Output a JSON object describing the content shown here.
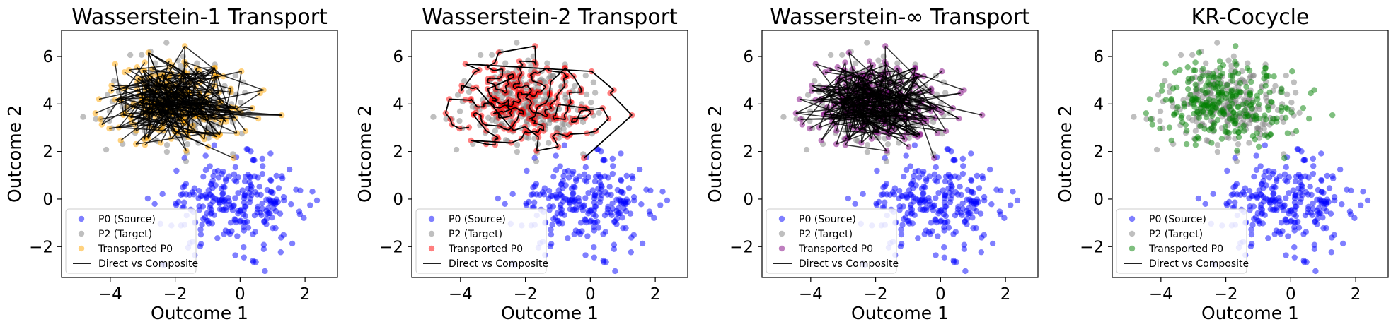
{
  "chart_data": [
    {
      "type": "scatter",
      "title": "Wasserstein-1 Transport",
      "xlabel": "Outcome 1",
      "ylabel": "Outcome 2",
      "transport_style": "random",
      "transport_color": "#ffa500",
      "legend": [
        "P0 (Source)",
        "P2 (Target)",
        "Transported P0",
        "Direct vs Composite"
      ]
    },
    {
      "type": "scatter",
      "title": "Wasserstein-2 Transport",
      "xlabel": "Outcome 1",
      "ylabel": "Outcome 2",
      "transport_style": "path",
      "transport_color": "#ff0000",
      "legend": [
        "P0 (Source)",
        "P2 (Target)",
        "Transported P0",
        "Direct vs Composite"
      ]
    },
    {
      "type": "scatter",
      "title": "Wasserstein-∞ Transport",
      "xlabel": "Outcome 1",
      "ylabel": "Outcome 2",
      "transport_style": "random",
      "transport_color": "#800080",
      "legend": [
        "P0 (Source)",
        "P2 (Target)",
        "Transported P0",
        "Direct vs Composite"
      ]
    },
    {
      "type": "scatter",
      "title": "KR-Cocycle",
      "xlabel": "Outcome 1",
      "ylabel": "Outcome 2",
      "transport_style": "none",
      "transport_color": "#008000",
      "legend": [
        "P0 (Source)",
        "P2 (Target)",
        "Transported P0",
        "Direct vs Composite"
      ]
    }
  ],
  "shared": {
    "xlim": [
      -5.5,
      3.0
    ],
    "ylim": [
      -3.3,
      7.1
    ],
    "xticks": [
      -4,
      -2,
      0,
      2
    ],
    "yticks": [
      -2,
      0,
      2,
      4,
      6
    ],
    "xtick_labels": [
      "−4",
      "−2",
      "0",
      "2"
    ],
    "ytick_labels": [
      "−2",
      "0",
      "2",
      "4",
      "6"
    ],
    "source_color": "#0000ff",
    "target_color": "#808080",
    "line_color": "#000000",
    "source_cloud": {
      "center": [
        -0.2,
        -0.2
      ],
      "spread": [
        1.1,
        0.9
      ],
      "count": 260
    },
    "target_cloud": {
      "center": [
        -2.0,
        4.0
      ],
      "spread": [
        1.0,
        0.9
      ],
      "count": 260
    }
  }
}
